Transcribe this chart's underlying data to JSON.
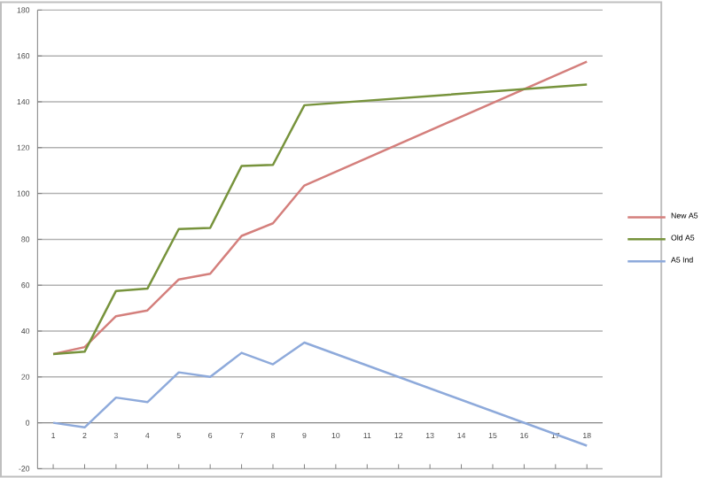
{
  "chart_data": {
    "type": "line",
    "categories": [
      "1",
      "2",
      "3",
      "4",
      "5",
      "6",
      "7",
      "8",
      "9",
      "10",
      "11",
      "12",
      "13",
      "14",
      "15",
      "16",
      "17",
      "18"
    ],
    "series": [
      {
        "name": "New A5",
        "color": "#d47f7c",
        "values": [
          30,
          33,
          46.5,
          49,
          62.5,
          65,
          81.5,
          87,
          103.5,
          null,
          null,
          null,
          null,
          null,
          null,
          null,
          null,
          157.5
        ]
      },
      {
        "name": "Old A5",
        "color": "#77933c",
        "values": [
          30,
          31,
          57.5,
          58.5,
          84.5,
          85,
          112,
          112.5,
          138.5,
          null,
          null,
          null,
          null,
          null,
          null,
          null,
          null,
          147.5
        ]
      },
      {
        "name": "A5 Ind",
        "color": "#8eaadb",
        "values": [
          0,
          -2,
          11,
          9,
          22,
          20,
          30.5,
          25.5,
          35,
          null,
          null,
          null,
          null,
          null,
          null,
          null,
          null,
          -10
        ]
      }
    ],
    "ylim": [
      -20,
      180
    ],
    "yticks": [
      -20,
      0,
      20,
      40,
      60,
      80,
      100,
      120,
      140,
      160,
      180
    ],
    "grid": "y",
    "legend": "right",
    "marker": "none",
    "line_style": "solid"
  }
}
